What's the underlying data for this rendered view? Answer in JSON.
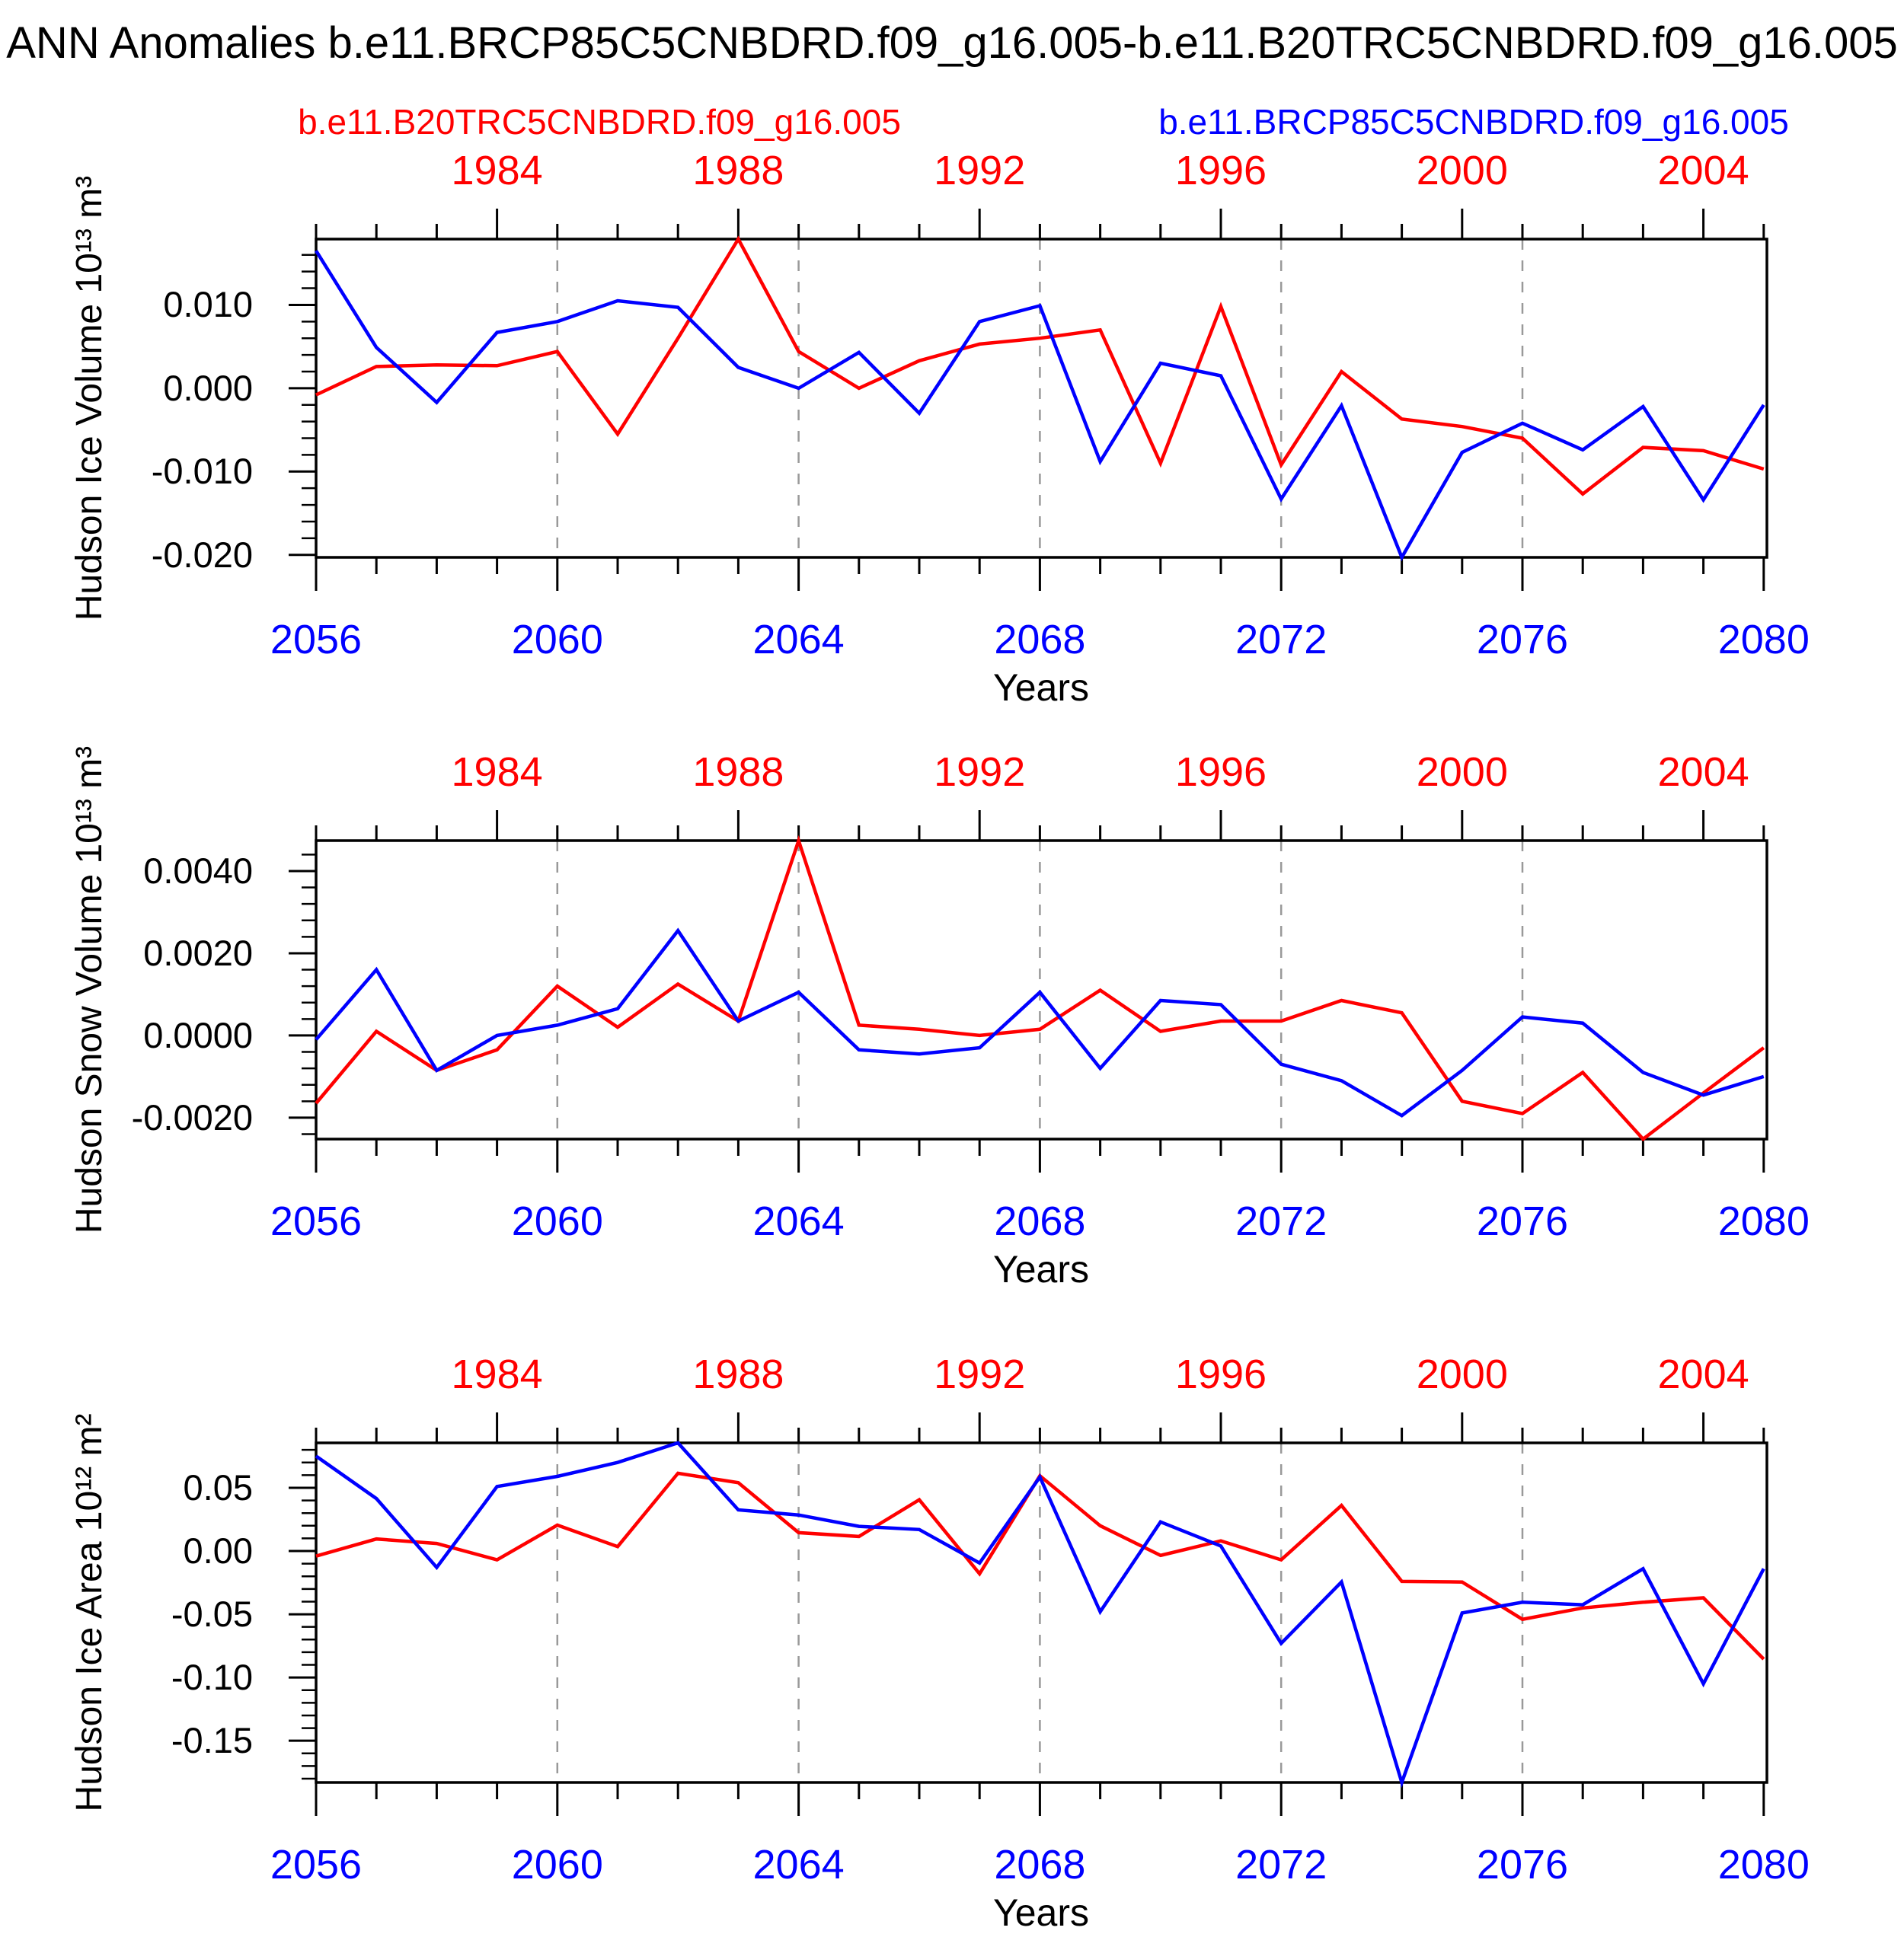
{
  "title": "ANN Anomalies b.e11.BRCP85C5CNBDRD.f09_g16.005-b.e11.B20TRC5CNBDRD.f09_g16.005",
  "legend": {
    "red_label": "b.e11.B20TRC5CNBDRD.f09_g16.005",
    "blue_label": "b.e11.BRCP85C5CNBDRD.f09_g16.005",
    "position": "top"
  },
  "colors": {
    "red": "#ff0000",
    "blue": "#0000ff",
    "axis": "#000000",
    "grid": "#999999",
    "background": "#ffffff"
  },
  "x_axis": {
    "label": "Years",
    "year_range": [
      2056,
      2080
    ],
    "top_year_range": [
      1981,
      2005
    ],
    "bottom_tick_labels": [
      "2056",
      "2060",
      "2064",
      "2068",
      "2072",
      "2076",
      "2080"
    ],
    "bottom_tick_years": [
      2056,
      2060,
      2064,
      2068,
      2072,
      2076,
      2080
    ],
    "top_tick_labels": [
      "1984",
      "1988",
      "1992",
      "1996",
      "2000",
      "2004"
    ],
    "top_tick_positions_in_bottom_years": [
      2059,
      2063,
      2067,
      2071,
      2075,
      2079
    ],
    "minor_tick_step_years": 1,
    "dashed_gridline_years": [
      2060,
      2064,
      2068,
      2072,
      2076
    ]
  },
  "chart_data": [
    {
      "type": "line",
      "ylabel": "Hudson Ice Volume 10¹³ m³",
      "xlabel": "Years",
      "ylim": [
        -0.0203,
        0.0179
      ],
      "ytick_values": [
        0.01,
        0.0,
        -0.01,
        -0.02
      ],
      "ytick_labels": [
        "0.010",
        "0.000",
        "-0.010",
        "-0.020"
      ],
      "y_minor_step": 0.002,
      "grid": "vertical-dashed",
      "series": [
        {
          "name": "b.e11.B20TRC5CNBDRD.f09_g16.005",
          "color_key": "red",
          "values": [
            -0.0008,
            0.0026,
            0.0028,
            0.0027,
            0.0044,
            -0.0055,
            0.006,
            0.0179,
            0.0044,
            0.0,
            0.0033,
            0.0053,
            0.006,
            0.007,
            -0.009,
            0.0098,
            -0.0092,
            0.002,
            -0.0037,
            -0.0046,
            -0.006,
            -0.0127,
            -0.0071,
            -0.0075,
            -0.0097
          ]
        },
        {
          "name": "b.e11.BRCP85C5CNBDRD.f09_g16.005",
          "color_key": "blue",
          "values": [
            0.0165,
            0.0049,
            -0.0017,
            0.0067,
            0.008,
            0.0105,
            0.0097,
            0.0025,
            0.0,
            0.0043,
            -0.003,
            0.008,
            0.0099,
            -0.0088,
            0.003,
            0.0015,
            -0.0133,
            -0.0021,
            -0.0203,
            -0.0077,
            -0.0042,
            -0.0074,
            -0.0022,
            -0.0134,
            -0.002
          ]
        }
      ]
    },
    {
      "type": "line",
      "ylabel": "Hudson Snow Volume 10¹³ m³",
      "xlabel": "Years",
      "ylim": [
        -0.00252,
        0.00474
      ],
      "ytick_values": [
        0.004,
        0.002,
        0.0,
        -0.002
      ],
      "ytick_labels": [
        "0.0040",
        "0.0020",
        "0.0000",
        "-0.0020"
      ],
      "y_minor_step": 0.0004,
      "grid": "vertical-dashed",
      "series": [
        {
          "name": "b.e11.B20TRC5CNBDRD.f09_g16.005",
          "color_key": "red",
          "values": [
            -0.00165,
            0.0001,
            -0.00085,
            -0.00035,
            0.0012,
            0.0002,
            0.00125,
            0.00035,
            0.00474,
            0.00025,
            0.00015,
            0.0,
            0.00015,
            0.0011,
            0.0001,
            0.00035,
            0.00035,
            0.00085,
            0.00055,
            -0.0016,
            -0.0019,
            -0.0009,
            -0.00252,
            -0.0014,
            -0.0003
          ]
        },
        {
          "name": "b.e11.BRCP85C5CNBDRD.f09_g16.005",
          "color_key": "blue",
          "values": [
            -0.0001,
            0.0016,
            -0.00085,
            0.0,
            0.00025,
            0.00065,
            0.00255,
            0.00035,
            0.00105,
            -0.00035,
            -0.00045,
            -0.0003,
            0.00105,
            -0.0008,
            0.00085,
            0.00075,
            -0.0007,
            -0.0011,
            -0.00195,
            -0.00085,
            0.00045,
            0.0003,
            -0.0009,
            -0.00145,
            -0.001
          ]
        }
      ]
    },
    {
      "type": "line",
      "ylabel": "Hudson Ice Area 10¹² m²",
      "xlabel": "Years",
      "ylim": [
        -0.183,
        0.0855
      ],
      "ytick_values": [
        0.05,
        0.0,
        -0.05,
        -0.1,
        -0.15
      ],
      "ytick_labels": [
        "0.05",
        "0.00",
        "-0.05",
        "-0.10",
        "-0.15"
      ],
      "y_minor_step": 0.01,
      "grid": "vertical-dashed",
      "series": [
        {
          "name": "b.e11.B20TRC5CNBDRD.f09_g16.005",
          "color_key": "red",
          "values": [
            -0.004,
            0.0095,
            0.006,
            -0.007,
            0.0205,
            0.0035,
            0.0615,
            0.054,
            0.0145,
            0.0115,
            0.0405,
            -0.018,
            0.0595,
            0.02,
            -0.0035,
            0.008,
            -0.007,
            0.036,
            -0.024,
            -0.0245,
            -0.054,
            -0.045,
            -0.0405,
            -0.037,
            -0.0855
          ]
        },
        {
          "name": "b.e11.BRCP85C5CNBDRD.f09_g16.005",
          "color_key": "blue",
          "values": [
            0.075,
            0.0415,
            -0.013,
            0.051,
            0.059,
            0.07,
            0.0855,
            0.0325,
            0.0285,
            0.0195,
            0.017,
            -0.0095,
            0.0585,
            -0.048,
            0.023,
            0.004,
            -0.073,
            -0.0245,
            -0.183,
            -0.049,
            -0.0405,
            -0.0425,
            -0.014,
            -0.105,
            -0.014
          ]
        }
      ]
    }
  ]
}
